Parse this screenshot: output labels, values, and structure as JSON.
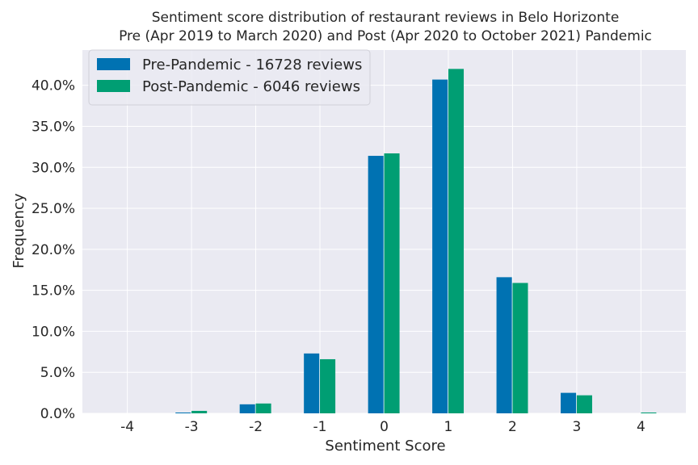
{
  "chart_data": {
    "type": "bar",
    "title": "Sentiment score distribution of restaurant reviews in Belo Horizonte",
    "subtitle": "Pre (Apr 2019 to March 2020) and Post (Apr 2020 to October 2021) Pandemic",
    "xlabel": "Sentiment Score",
    "ylabel": "Frequency",
    "categories": [
      "-4",
      "-3",
      "-2",
      "-1",
      "0",
      "1",
      "2",
      "3",
      "4"
    ],
    "series": [
      {
        "name": "Pre-Pandemic - 16728 reviews",
        "color": "#0072b2",
        "values": [
          0.0,
          0.1,
          1.1,
          7.3,
          31.4,
          40.7,
          16.6,
          2.5,
          0.0
        ]
      },
      {
        "name": "Post-Pandemic - 6046 reviews",
        "color": "#009e73",
        "values": [
          0.0,
          0.3,
          1.2,
          6.6,
          31.7,
          42.0,
          15.9,
          2.2,
          0.1
        ]
      }
    ],
    "ylim": [
      0,
      44.3
    ],
    "yticks": [
      0,
      5,
      10,
      15,
      20,
      25,
      30,
      35,
      40
    ],
    "ytick_labels": [
      "0.0%",
      "5.0%",
      "10.0%",
      "15.0%",
      "20.0%",
      "25.0%",
      "30.0%",
      "35.0%",
      "40.0%"
    ],
    "grid": true,
    "legend_position": "upper-left",
    "background_color": "#eaeaf2"
  }
}
